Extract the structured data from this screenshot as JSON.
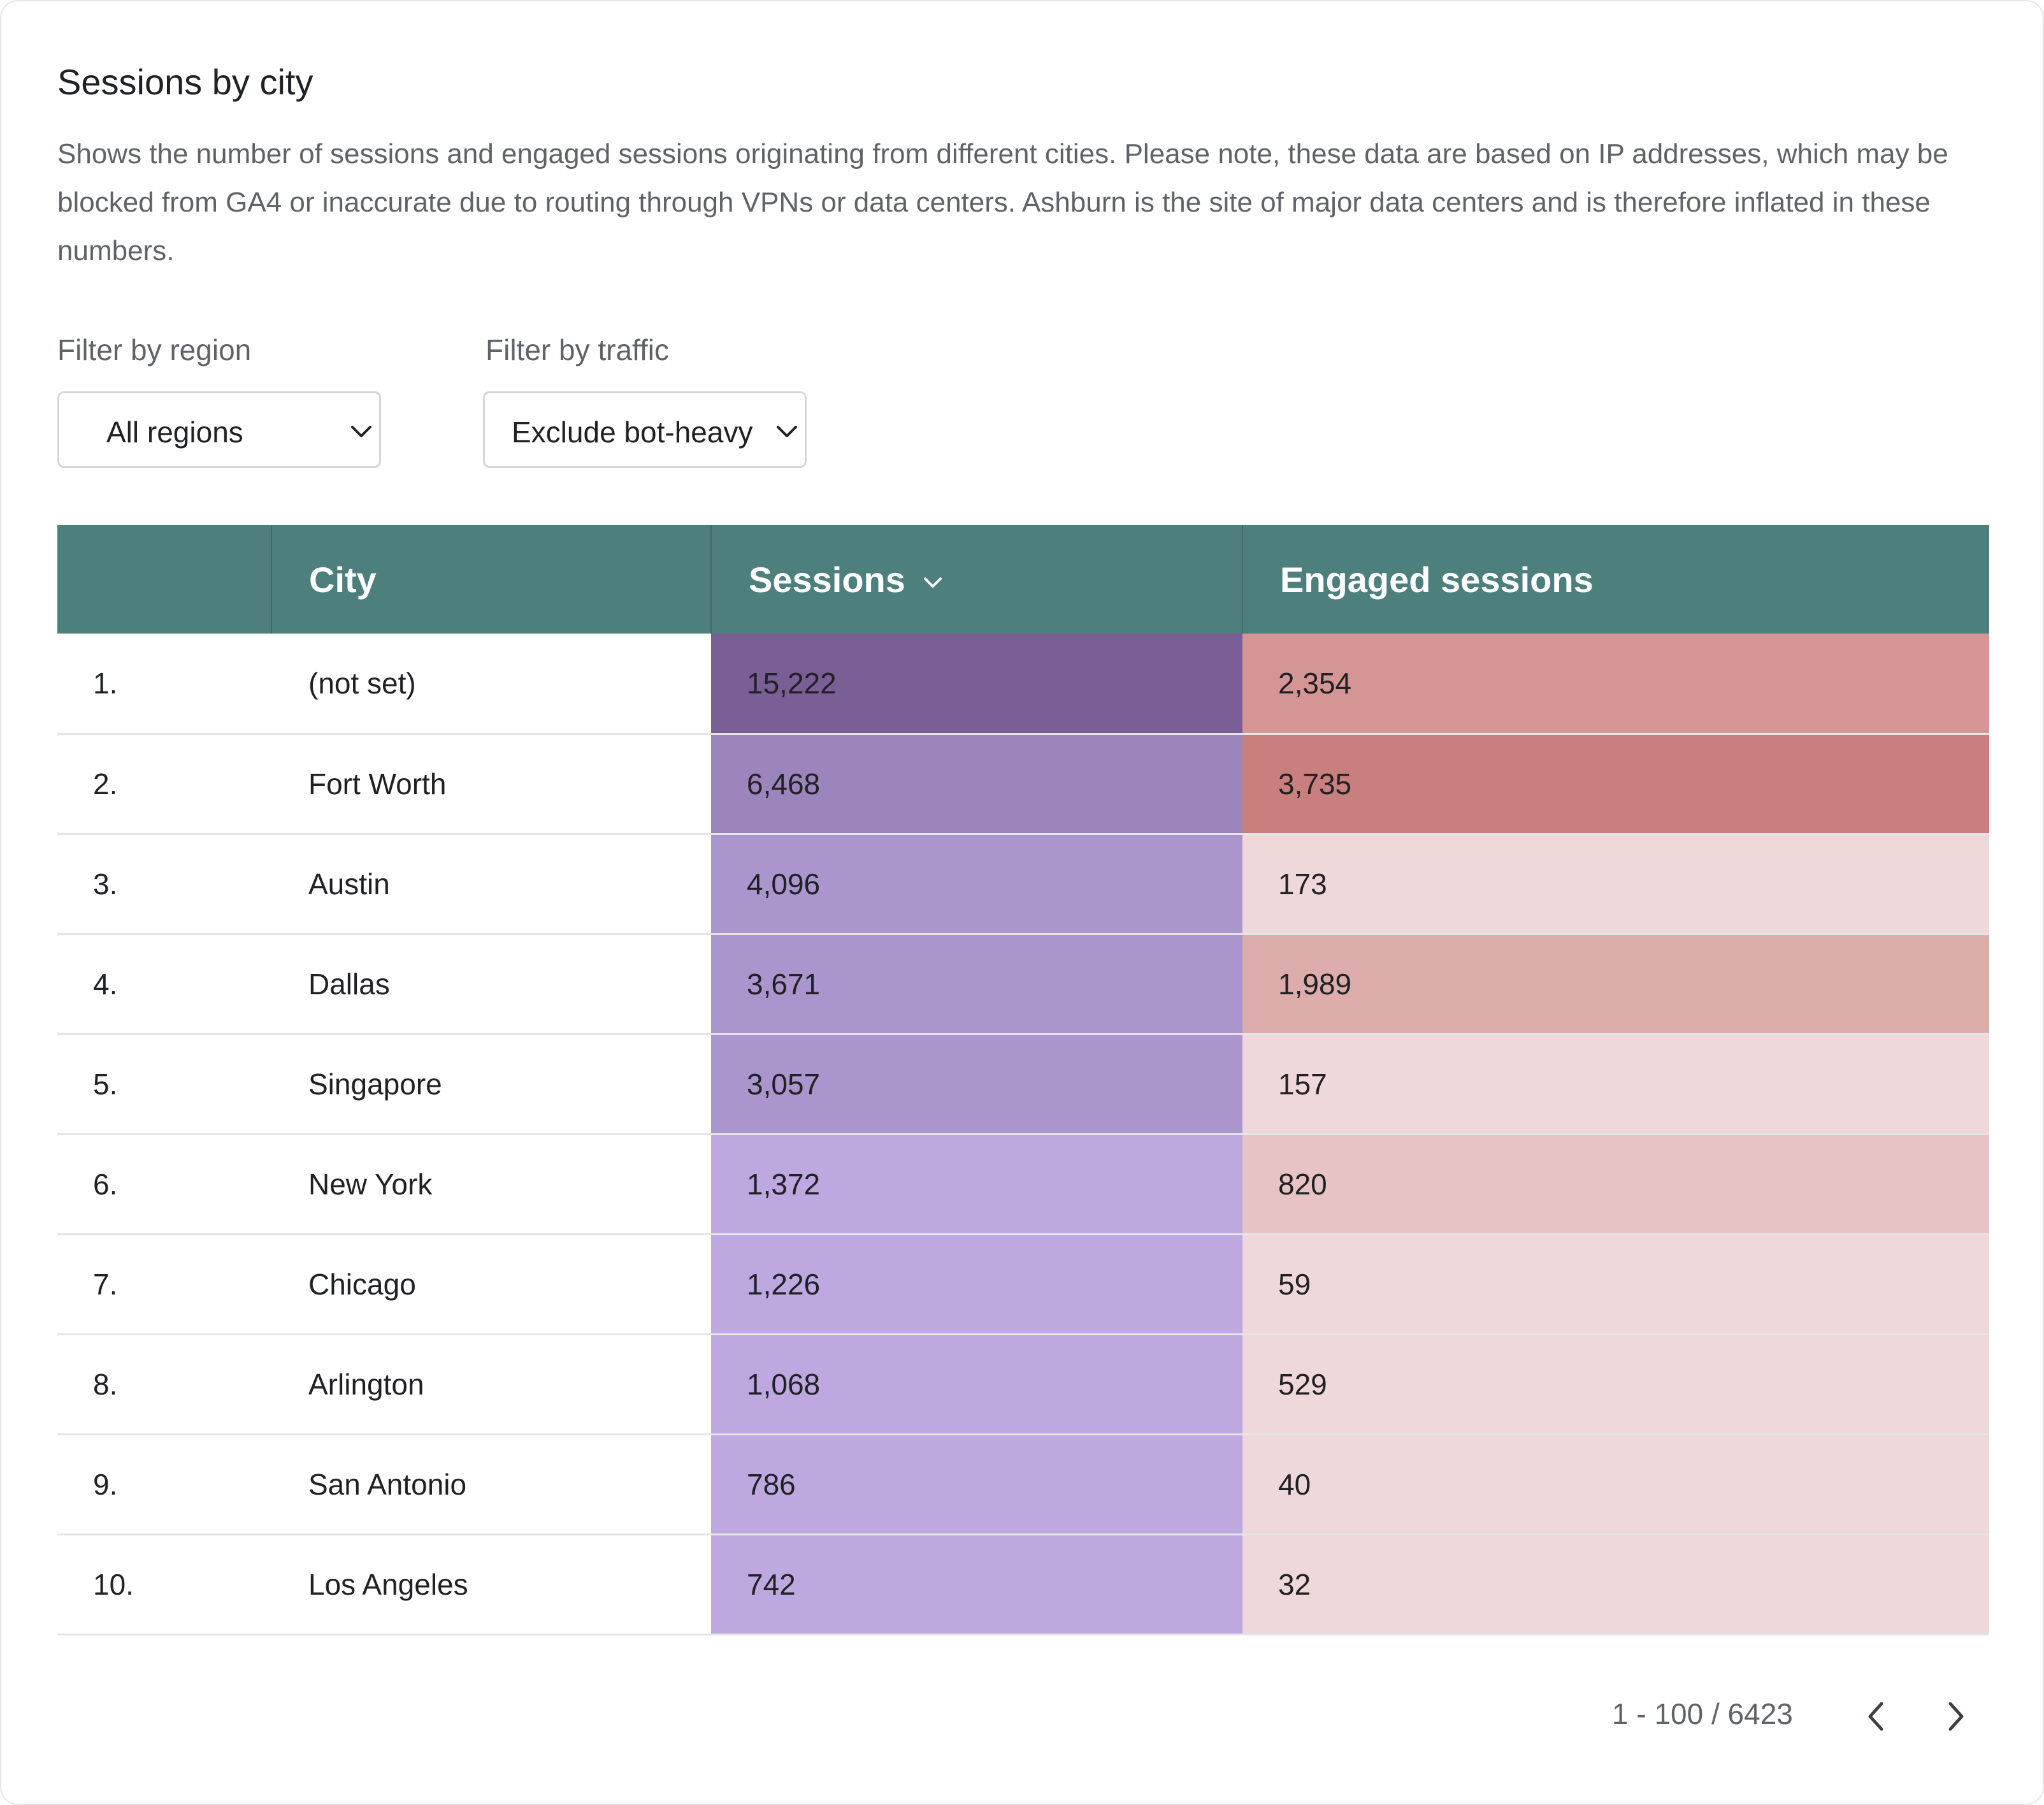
{
  "card": {
    "title": "Sessions by city",
    "description": "Shows the number of sessions and engaged sessions originating from different cities. Please note, these data are based on IP addresses, which may be blocked from GA4 or inaccurate due to routing through VPNs or data centers. Ashburn is the site of major data centers and is therefore inflated in these numbers."
  },
  "filters": {
    "region": {
      "label": "Filter by region",
      "value": "All regions"
    },
    "traffic": {
      "label": "Filter by traffic",
      "value": "Exclude bot-heavy"
    }
  },
  "table": {
    "headers": {
      "rank": "",
      "city": "City",
      "sessions": "Sessions",
      "engaged": "Engaged sessions"
    },
    "sort": {
      "column": "sessions",
      "direction": "descending"
    },
    "rows": [
      {
        "rank": "1.",
        "city": "(not set)",
        "sessions": "15,222",
        "engaged": "2,354",
        "sessions_color": "#7a5e96",
        "engaged_color": "#d49594"
      },
      {
        "rank": "2.",
        "city": "Fort Worth",
        "sessions": "6,468",
        "engaged": "3,735",
        "sessions_color": "#9b85bc",
        "engaged_color": "#c97f7d"
      },
      {
        "rank": "3.",
        "city": "Austin",
        "sessions": "4,096",
        "engaged": "173",
        "sessions_color": "#aa95cc",
        "engaged_color": "#efd8d9"
      },
      {
        "rank": "4.",
        "city": "Dallas",
        "sessions": "3,671",
        "engaged": "1,989",
        "sessions_color": "#aa95cc",
        "engaged_color": "#dcadab"
      },
      {
        "rank": "5.",
        "city": "Singapore",
        "sessions": "3,057",
        "engaged": "157",
        "sessions_color": "#aa95cc",
        "engaged_color": "#efd8d9"
      },
      {
        "rank": "6.",
        "city": "New York",
        "sessions": "1,372",
        "engaged": "820",
        "sessions_color": "#bda8df",
        "engaged_color": "#e8c3c3"
      },
      {
        "rank": "7.",
        "city": "Chicago",
        "sessions": "1,226",
        "engaged": "59",
        "sessions_color": "#bda8df",
        "engaged_color": "#efd8d9"
      },
      {
        "rank": "8.",
        "city": "Arlington",
        "sessions": "1,068",
        "engaged": "529",
        "sessions_color": "#bda8df",
        "engaged_color": "#efd8d9"
      },
      {
        "rank": "9.",
        "city": "San Antonio",
        "sessions": "786",
        "engaged": "40",
        "sessions_color": "#bda8df",
        "engaged_color": "#efd8d9"
      },
      {
        "rank": "10.",
        "city": "Los Angeles",
        "sessions": "742",
        "engaged": "32",
        "sessions_color": "#bda8df",
        "engaged_color": "#efd8d9"
      }
    ]
  },
  "pagination": {
    "range_text": "1 - 100 / 6423",
    "prev_icon": "chevron-left-icon",
    "next_icon": "chevron-right-icon"
  },
  "colors": {
    "header_bg": "#4d7f7d",
    "header_text": "#ffffff"
  }
}
